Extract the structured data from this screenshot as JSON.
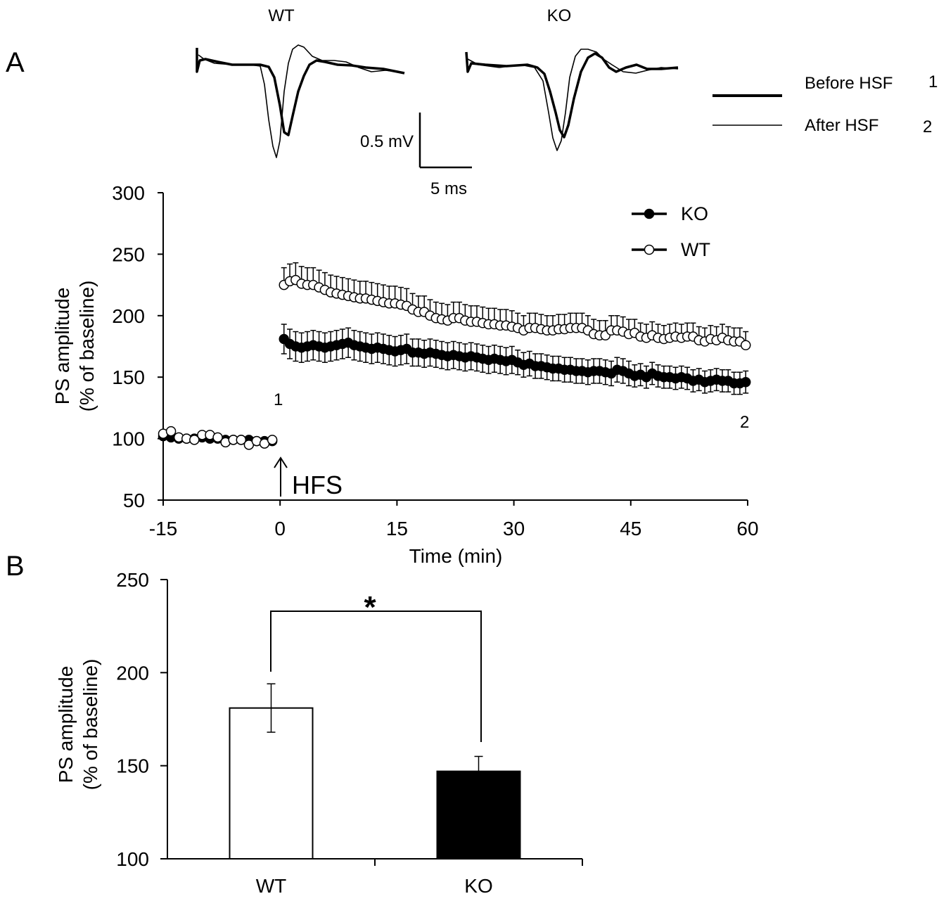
{
  "figure": {
    "panel_a_label": "A",
    "panel_b_label": "B",
    "trace_titles": [
      "WT",
      "KO"
    ],
    "scale_bar": {
      "voltage_label": "0.5 mV",
      "time_label": "5 ms"
    },
    "trace_legend": {
      "thick_label": "Before HSF",
      "thick_num": "1",
      "thin_label": "After HSF",
      "thin_num": "2"
    },
    "hfs_label": "HFS",
    "marker_1": "1",
    "marker_2": "2",
    "significance": "*"
  },
  "colors": {
    "ink": "#000000",
    "background": "#ffffff",
    "open_marker": "#ffffff",
    "ko_bar": "#000000",
    "wt_bar": "#ffffff"
  },
  "chart_data": [
    {
      "type": "line",
      "panel": "A",
      "xlabel": "Time (min)",
      "ylabel_line1": "PS amplitude",
      "ylabel_line2": "(% of baseline)",
      "xlim": [
        -15,
        60
      ],
      "ylim": [
        50,
        300
      ],
      "xticks": [
        -15,
        0,
        15,
        30,
        45,
        60
      ],
      "yticks": [
        50,
        100,
        150,
        200,
        250,
        300
      ],
      "legend_position": "top-right",
      "series": [
        {
          "name": "KO",
          "marker": "filled-circle",
          "x": [
            -15,
            -14,
            -13,
            -12,
            -11,
            -10,
            -9,
            -8,
            -7,
            -6,
            -5,
            -4,
            -3,
            -2,
            -1,
            0.5,
            1.25,
            2,
            2.75,
            3.5,
            4.25,
            5,
            5.75,
            6.5,
            7.25,
            8,
            8.75,
            9.5,
            10.25,
            11,
            11.75,
            12.5,
            13.25,
            14,
            14.75,
            15.5,
            16.25,
            17,
            17.75,
            18.5,
            19.25,
            20,
            20.75,
            21.5,
            22.25,
            23,
            23.75,
            24.5,
            25.25,
            26,
            26.75,
            27.5,
            28.25,
            29,
            29.75,
            30.5,
            31.25,
            32,
            32.75,
            33.5,
            34.25,
            35,
            35.75,
            36.5,
            37.25,
            38,
            38.75,
            39.5,
            40.25,
            41,
            41.75,
            42.5,
            43.25,
            44,
            44.75,
            45.5,
            46.25,
            47,
            47.75,
            48.5,
            49.25,
            50,
            50.75,
            51.5,
            52.25,
            53,
            53.75,
            54.5,
            55.25,
            56,
            56.75,
            57.5,
            58.25,
            59,
            59.75
          ],
          "y": [
            102,
            101,
            100,
            100,
            100,
            101,
            100,
            100,
            99,
            99,
            99,
            99,
            98,
            98,
            98,
            181,
            177,
            175,
            174,
            175,
            176,
            175,
            174,
            175,
            176,
            177,
            178,
            176,
            175,
            174,
            173,
            174,
            173,
            172,
            171,
            172,
            173,
            170,
            170,
            169,
            170,
            169,
            168,
            167,
            168,
            167,
            166,
            167,
            166,
            165,
            164,
            165,
            164,
            163,
            164,
            162,
            160,
            161,
            159,
            159,
            158,
            157,
            157,
            156,
            156,
            155,
            155,
            154,
            155,
            155,
            154,
            153,
            156,
            155,
            153,
            151,
            152,
            150,
            153,
            151,
            150,
            150,
            149,
            150,
            149,
            147,
            148,
            146,
            147,
            148,
            147,
            147,
            145,
            145,
            146
          ],
          "err": [
            3,
            3,
            3,
            3,
            3,
            3,
            3,
            3,
            3,
            3,
            3,
            3,
            3,
            3,
            3,
            12,
            12,
            12,
            12,
            12,
            12,
            12,
            12,
            12,
            12,
            12,
            12,
            12,
            12,
            12,
            12,
            12,
            12,
            12,
            12,
            12,
            12,
            11,
            11,
            11,
            11,
            11,
            11,
            11,
            11,
            11,
            11,
            11,
            11,
            11,
            11,
            11,
            11,
            11,
            11,
            10,
            10,
            10,
            10,
            10,
            10,
            10,
            10,
            10,
            10,
            10,
            10,
            10,
            10,
            10,
            10,
            10,
            10,
            10,
            10,
            9,
            9,
            9,
            9,
            9,
            9,
            9,
            9,
            9,
            9,
            9,
            9,
            9,
            9,
            9,
            9,
            9,
            9,
            9,
            9
          ]
        },
        {
          "name": "WT",
          "marker": "open-circle",
          "x": [
            -15,
            -14,
            -13,
            -12,
            -11,
            -10,
            -9,
            -8,
            -7,
            -6,
            -5,
            -4,
            -3,
            -2,
            -1,
            0.5,
            1.25,
            2,
            2.75,
            3.5,
            4.25,
            5,
            5.75,
            6.5,
            7.25,
            8,
            8.75,
            9.5,
            10.25,
            11,
            11.75,
            12.5,
            13.25,
            14,
            14.75,
            15.5,
            16.25,
            17,
            17.75,
            18.5,
            19.25,
            20,
            20.75,
            21.5,
            22.25,
            23,
            23.75,
            24.5,
            25.25,
            26,
            26.75,
            27.5,
            28.25,
            29,
            29.75,
            30.5,
            31.25,
            32,
            32.75,
            33.5,
            34.25,
            35,
            35.75,
            36.5,
            37.25,
            38,
            38.75,
            39.5,
            40.25,
            41,
            41.75,
            42.5,
            43.25,
            44,
            44.75,
            45.5,
            46.25,
            47,
            47.75,
            48.5,
            49.25,
            50,
            50.75,
            51.5,
            52.25,
            53,
            53.75,
            54.5,
            55.25,
            56,
            56.75,
            57.5,
            58.25,
            59,
            59.75
          ],
          "y": [
            104,
            106,
            101,
            100,
            99,
            103,
            103,
            101,
            97,
            99,
            99,
            95,
            98,
            96,
            99,
            225,
            228,
            229,
            226,
            225,
            225,
            223,
            221,
            219,
            218,
            217,
            216,
            215,
            214,
            214,
            213,
            212,
            211,
            210,
            210,
            209,
            208,
            205,
            203,
            203,
            200,
            198,
            197,
            196,
            198,
            198,
            196,
            195,
            195,
            194,
            193,
            193,
            192,
            192,
            191,
            190,
            188,
            190,
            190,
            189,
            188,
            188,
            189,
            189,
            190,
            190,
            190,
            188,
            185,
            184,
            184,
            188,
            188,
            187,
            185,
            186,
            183,
            182,
            184,
            182,
            181,
            182,
            183,
            182,
            183,
            183,
            180,
            179,
            181,
            180,
            182,
            180,
            179,
            179,
            176
          ],
          "err": [
            3,
            3,
            3,
            3,
            3,
            3,
            3,
            3,
            3,
            3,
            3,
            3,
            3,
            3,
            3,
            14,
            14,
            14,
            14,
            14,
            14,
            14,
            14,
            14,
            14,
            14,
            14,
            14,
            14,
            14,
            14,
            14,
            14,
            14,
            14,
            14,
            14,
            13,
            13,
            13,
            13,
            13,
            13,
            13,
            13,
            13,
            13,
            13,
            13,
            13,
            13,
            13,
            13,
            13,
            13,
            12,
            12,
            12,
            12,
            12,
            12,
            12,
            12,
            12,
            12,
            12,
            12,
            12,
            12,
            12,
            12,
            12,
            12,
            12,
            12,
            11,
            11,
            11,
            11,
            11,
            11,
            11,
            11,
            11,
            11,
            11,
            11,
            11,
            11,
            11,
            11,
            11,
            11,
            11,
            11
          ]
        }
      ]
    },
    {
      "type": "bar",
      "panel": "B",
      "categories": [
        "WT",
        "KO"
      ],
      "values": [
        181,
        147
      ],
      "errors": [
        13,
        8
      ],
      "ylabel_line1": "PS amplitude",
      "ylabel_line2": "(% of baseline)",
      "ylim": [
        100,
        250
      ],
      "yticks": [
        100,
        150,
        200,
        250
      ]
    }
  ]
}
